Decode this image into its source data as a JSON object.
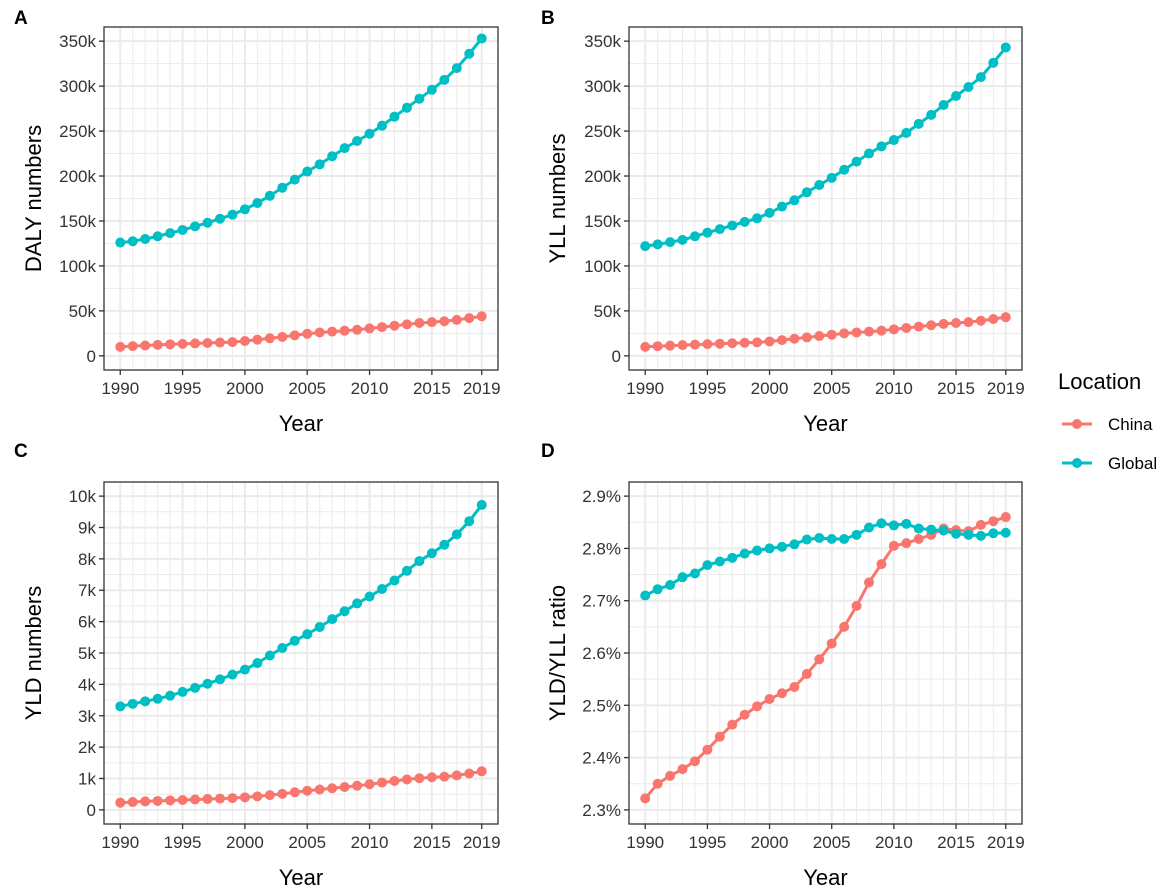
{
  "colors": {
    "china": "#f8766d",
    "global": "#00bfc4",
    "grid": "#ebebeb",
    "frame": "#333333"
  },
  "legend": {
    "title": "Location",
    "items": [
      {
        "label": "China",
        "color": "#f8766d"
      },
      {
        "label": "Global",
        "color": "#00bfc4"
      }
    ]
  },
  "chart_data": [
    {
      "panel": "A",
      "type": "line",
      "xlabel": "Year",
      "ylabel": "DALY numbers",
      "xlim": [
        1990,
        2019
      ],
      "ylim": [
        0,
        350000
      ],
      "x_ticks": [
        1990,
        1995,
        2000,
        2005,
        2010,
        2015,
        2019
      ],
      "x_tick_labels": [
        "1990",
        "1995",
        "2000",
        "2005",
        "2010",
        "2015",
        "2019"
      ],
      "y_ticks": [
        0,
        50000,
        100000,
        150000,
        200000,
        250000,
        300000,
        350000
      ],
      "y_tick_labels": [
        "0",
        "50k",
        "100k",
        "150k",
        "200k",
        "250k",
        "300k",
        "350k"
      ],
      "x": [
        1990,
        1991,
        1992,
        1993,
        1994,
        1995,
        1996,
        1997,
        1998,
        1999,
        2000,
        2001,
        2002,
        2003,
        2004,
        2005,
        2006,
        2007,
        2008,
        2009,
        2010,
        2011,
        2012,
        2013,
        2014,
        2015,
        2016,
        2017,
        2018,
        2019
      ],
      "series": [
        {
          "name": "China",
          "values": [
            10000,
            10800,
            11500,
            12200,
            12800,
            13300,
            13800,
            14300,
            14800,
            15300,
            16500,
            18000,
            19500,
            21000,
            22800,
            24500,
            26000,
            27000,
            28000,
            29000,
            30500,
            32000,
            33500,
            35000,
            36500,
            37500,
            38500,
            40000,
            42000,
            44000
          ]
        },
        {
          "name": "Global",
          "values": [
            126000,
            127500,
            130000,
            133000,
            136500,
            140000,
            144000,
            148000,
            152500,
            157000,
            163000,
            170000,
            178000,
            187000,
            196000,
            205000,
            213000,
            222000,
            231000,
            239000,
            247000,
            256000,
            266000,
            276000,
            286000,
            296000,
            307000,
            320000,
            336000,
            353000
          ]
        }
      ]
    },
    {
      "panel": "B",
      "type": "line",
      "xlabel": "Year",
      "ylabel": "YLL numbers",
      "xlim": [
        1990,
        2019
      ],
      "ylim": [
        0,
        350000
      ],
      "x_ticks": [
        1990,
        1995,
        2000,
        2005,
        2010,
        2015,
        2019
      ],
      "x_tick_labels": [
        "1990",
        "1995",
        "2000",
        "2005",
        "2010",
        "2015",
        "2019"
      ],
      "y_ticks": [
        0,
        50000,
        100000,
        150000,
        200000,
        250000,
        300000,
        350000
      ],
      "y_tick_labels": [
        "0",
        "50k",
        "100k",
        "150k",
        "200k",
        "250k",
        "300k",
        "350k"
      ],
      "x": [
        1990,
        1991,
        1992,
        1993,
        1994,
        1995,
        1996,
        1997,
        1998,
        1999,
        2000,
        2001,
        2002,
        2003,
        2004,
        2005,
        2006,
        2007,
        2008,
        2009,
        2010,
        2011,
        2012,
        2013,
        2014,
        2015,
        2016,
        2017,
        2018,
        2019
      ],
      "series": [
        {
          "name": "China",
          "values": [
            10000,
            10700,
            11300,
            11900,
            12500,
            13000,
            13500,
            14000,
            14500,
            15000,
            16000,
            17500,
            19000,
            20500,
            22000,
            23500,
            25000,
            26000,
            27000,
            28000,
            29500,
            31000,
            32500,
            34000,
            35500,
            36500,
            37500,
            39000,
            41000,
            43000
          ]
        },
        {
          "name": "Global",
          "values": [
            122000,
            124000,
            126500,
            129000,
            133000,
            137000,
            141000,
            145000,
            149000,
            153000,
            159000,
            166000,
            173000,
            182000,
            190000,
            198000,
            207000,
            216000,
            225000,
            233000,
            240000,
            248000,
            258000,
            268000,
            279000,
            289000,
            299000,
            310000,
            326000,
            343000
          ]
        }
      ]
    },
    {
      "panel": "C",
      "type": "line",
      "xlabel": "Year",
      "ylabel": "YLD numbers",
      "xlim": [
        1990,
        2019
      ],
      "ylim": [
        0,
        10000
      ],
      "x_ticks": [
        1990,
        1995,
        2000,
        2005,
        2010,
        2015,
        2019
      ],
      "x_tick_labels": [
        "1990",
        "1995",
        "2000",
        "2005",
        "2010",
        "2015",
        "2019"
      ],
      "y_ticks": [
        0,
        1000,
        2000,
        3000,
        4000,
        5000,
        6000,
        7000,
        8000,
        9000,
        10000
      ],
      "y_tick_labels": [
        "0",
        "1k",
        "2k",
        "3k",
        "4k",
        "5k",
        "6k",
        "7k",
        "8k",
        "9k",
        "10k"
      ],
      "x": [
        1990,
        1991,
        1992,
        1993,
        1994,
        1995,
        1996,
        1997,
        1998,
        1999,
        2000,
        2001,
        2002,
        2003,
        2004,
        2005,
        2006,
        2007,
        2008,
        2009,
        2010,
        2011,
        2012,
        2013,
        2014,
        2015,
        2016,
        2017,
        2018,
        2019
      ],
      "series": [
        {
          "name": "China",
          "values": [
            230,
            250,
            270,
            285,
            300,
            315,
            330,
            345,
            360,
            375,
            400,
            430,
            470,
            510,
            560,
            610,
            650,
            690,
            730,
            770,
            820,
            870,
            920,
            970,
            1010,
            1040,
            1060,
            1100,
            1160,
            1230
          ]
        },
        {
          "name": "Global",
          "values": [
            3300,
            3380,
            3460,
            3540,
            3640,
            3760,
            3890,
            4020,
            4160,
            4310,
            4470,
            4680,
            4920,
            5160,
            5390,
            5600,
            5830,
            6080,
            6330,
            6580,
            6800,
            7040,
            7310,
            7620,
            7930,
            8180,
            8450,
            8780,
            9200,
            9720
          ]
        }
      ]
    },
    {
      "panel": "D",
      "type": "line",
      "xlabel": "Year",
      "ylabel": "YLD/YLL ratio",
      "xlim": [
        1990,
        2019
      ],
      "ylim": [
        2.3,
        2.9
      ],
      "x_ticks": [
        1990,
        1995,
        2000,
        2005,
        2010,
        2015,
        2019
      ],
      "x_tick_labels": [
        "1990",
        "1995",
        "2000",
        "2005",
        "2010",
        "2015",
        "2019"
      ],
      "y_ticks": [
        2.3,
        2.4,
        2.5,
        2.6,
        2.7,
        2.8,
        2.9
      ],
      "y_tick_labels": [
        "2.3%",
        "2.4%",
        "2.5%",
        "2.6%",
        "2.7%",
        "2.8%",
        "2.9%"
      ],
      "x": [
        1990,
        1991,
        1992,
        1993,
        1994,
        1995,
        1996,
        1997,
        1998,
        1999,
        2000,
        2001,
        2002,
        2003,
        2004,
        2005,
        2006,
        2007,
        2008,
        2009,
        2010,
        2011,
        2012,
        2013,
        2014,
        2015,
        2016,
        2017,
        2018,
        2019
      ],
      "series": [
        {
          "name": "China",
          "values": [
            2.322,
            2.35,
            2.365,
            2.378,
            2.393,
            2.415,
            2.44,
            2.463,
            2.482,
            2.498,
            2.512,
            2.523,
            2.535,
            2.56,
            2.588,
            2.618,
            2.65,
            2.69,
            2.735,
            2.77,
            2.805,
            2.81,
            2.818,
            2.826,
            2.838,
            2.835,
            2.833,
            2.845,
            2.852,
            2.86
          ]
        },
        {
          "name": "Global",
          "values": [
            2.71,
            2.722,
            2.73,
            2.745,
            2.752,
            2.768,
            2.775,
            2.782,
            2.79,
            2.796,
            2.8,
            2.803,
            2.808,
            2.817,
            2.82,
            2.818,
            2.818,
            2.826,
            2.84,
            2.848,
            2.844,
            2.847,
            2.838,
            2.836,
            2.834,
            2.828,
            2.826,
            2.824,
            2.829,
            2.83
          ]
        }
      ]
    }
  ]
}
